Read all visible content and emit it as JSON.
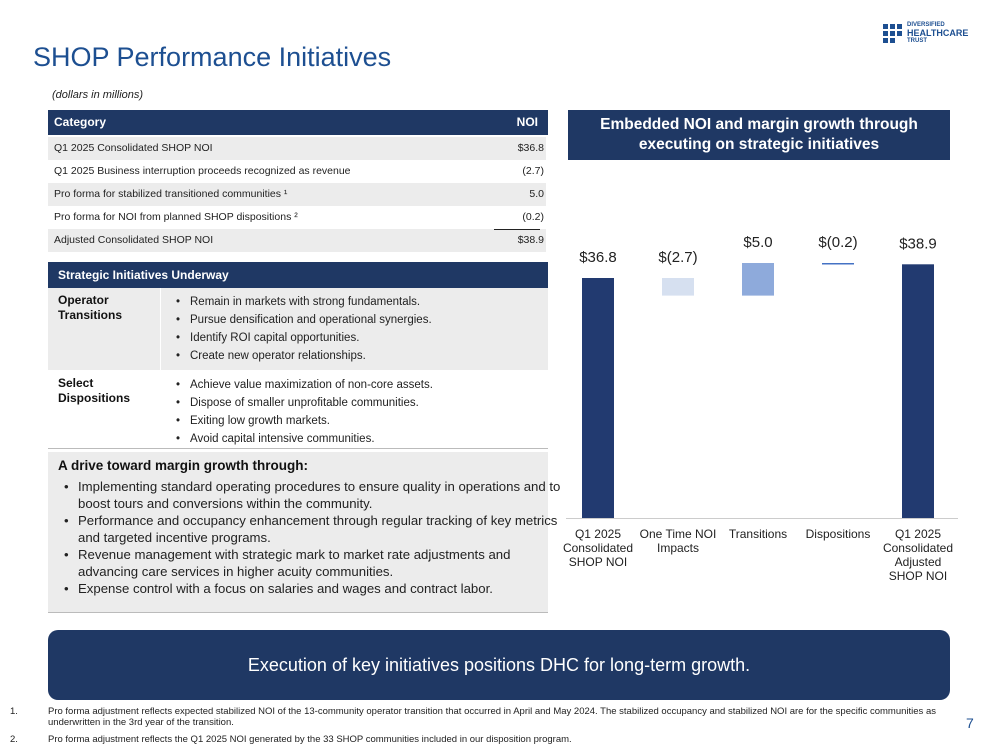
{
  "header": {
    "title": "SHOP Performance Initiatives",
    "subtitle": "(dollars in millions)",
    "logo": [
      "DIVERSIFIED",
      "HEALTHCARE",
      "TRUST"
    ]
  },
  "table": {
    "columns": [
      "Category",
      "NOI"
    ],
    "rows": [
      [
        "Q1 2025 Consolidated SHOP NOI",
        "$36.8"
      ],
      [
        "Q1 2025 Business interruption proceeds recognized as revenue",
        "(2.7)"
      ],
      [
        "Pro forma for stabilized transitioned communities ¹",
        "5.0"
      ],
      [
        "Pro forma for NOI from planned SHOP dispositions ²",
        "(0.2)"
      ],
      [
        "Adjusted Consolidated SHOP NOI",
        "$38.9"
      ]
    ]
  },
  "initiatives": {
    "title": "Strategic Initiatives Underway",
    "groups": [
      {
        "label": "Operator Transitions",
        "items": [
          "Remain in markets with strong fundamentals.",
          "Pursue densification and operational synergies.",
          "Identify ROI capital opportunities.",
          "Create new operator relationships."
        ]
      },
      {
        "label": "Select Dispositions",
        "items": [
          "Achieve value maximization of non-core assets.",
          "Dispose of smaller unprofitable communities.",
          "Exiting low growth markets.",
          "Avoid capital intensive communities."
        ]
      }
    ]
  },
  "drive": {
    "title": "A drive toward margin growth through:",
    "items": [
      "Implementing standard operating procedures to ensure quality in operations and to boost tours and conversions within the community.",
      "Performance and occupancy enhancement through regular tracking of key metrics and targeted incentive programs.",
      "Revenue management with strategic mark to market rate adjustments and advancing care services in higher acuity communities.",
      "Expense control with a focus on salaries and wages and contract labor."
    ]
  },
  "banner": "Execution of key initiatives positions DHC for long-term growth.",
  "footnotes": [
    {
      "mark": "1.",
      "text": "Pro forma adjustment reflects expected stabilized NOI of the 13-community operator transition that occurred in April and May 2024. The stabilized occupancy and stabilized NOI are for the specific communities as underwritten in the 3rd year of the transition."
    },
    {
      "mark": "2.",
      "text": "Pro forma adjustment reflects the Q1 2025 NOI generated by the 33 SHOP communities included in our disposition program."
    }
  ],
  "page_number": "7",
  "chart_data": {
    "type": "waterfall",
    "title": "Embedded NOI and margin growth through executing on strategic initiatives",
    "categories": [
      "Q1 2025 Consolidated SHOP NOI",
      "One Time NOI Impacts",
      "Transitions",
      "Dispositions",
      "Q1 2025 Consolidated Adjusted SHOP NOI"
    ],
    "values": [
      36.8,
      -2.7,
      5.0,
      -0.2,
      38.9
    ],
    "value_labels": [
      "$36.8",
      "$(2.7)",
      "$5.0",
      "$(0.2)",
      "$38.9"
    ],
    "measure": [
      "total",
      "relative",
      "relative",
      "relative",
      "total"
    ],
    "colors": [
      "#223a70",
      "#d6e0f0",
      "#8eaadb",
      "#4472c4",
      "#223a70"
    ]
  }
}
